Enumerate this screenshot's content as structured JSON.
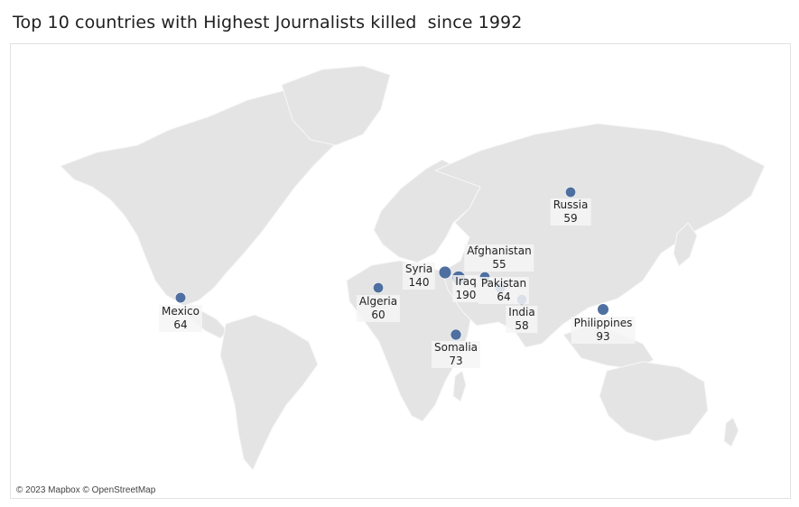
{
  "title": "Top 10 countries with Highest Journalists killed  since 1992",
  "colors": {
    "bubble": "#4e6fa0",
    "land": "#e4e4e4"
  },
  "attribution": "© 2023 Mapbox © OpenStreetMap",
  "points": [
    {
      "country": "Mexico",
      "value": "64"
    },
    {
      "country": "Algeria",
      "value": "60"
    },
    {
      "country": "Syria",
      "value": "140"
    },
    {
      "country": "Iraq",
      "value": "190"
    },
    {
      "country": "Afghanistan",
      "value": "55"
    },
    {
      "country": "Pakistan",
      "value": "64"
    },
    {
      "country": "India",
      "value": "58"
    },
    {
      "country": "Somalia",
      "value": "73"
    },
    {
      "country": "Russia",
      "value": "59"
    },
    {
      "country": "Philippines",
      "value": "93"
    }
  ]
}
